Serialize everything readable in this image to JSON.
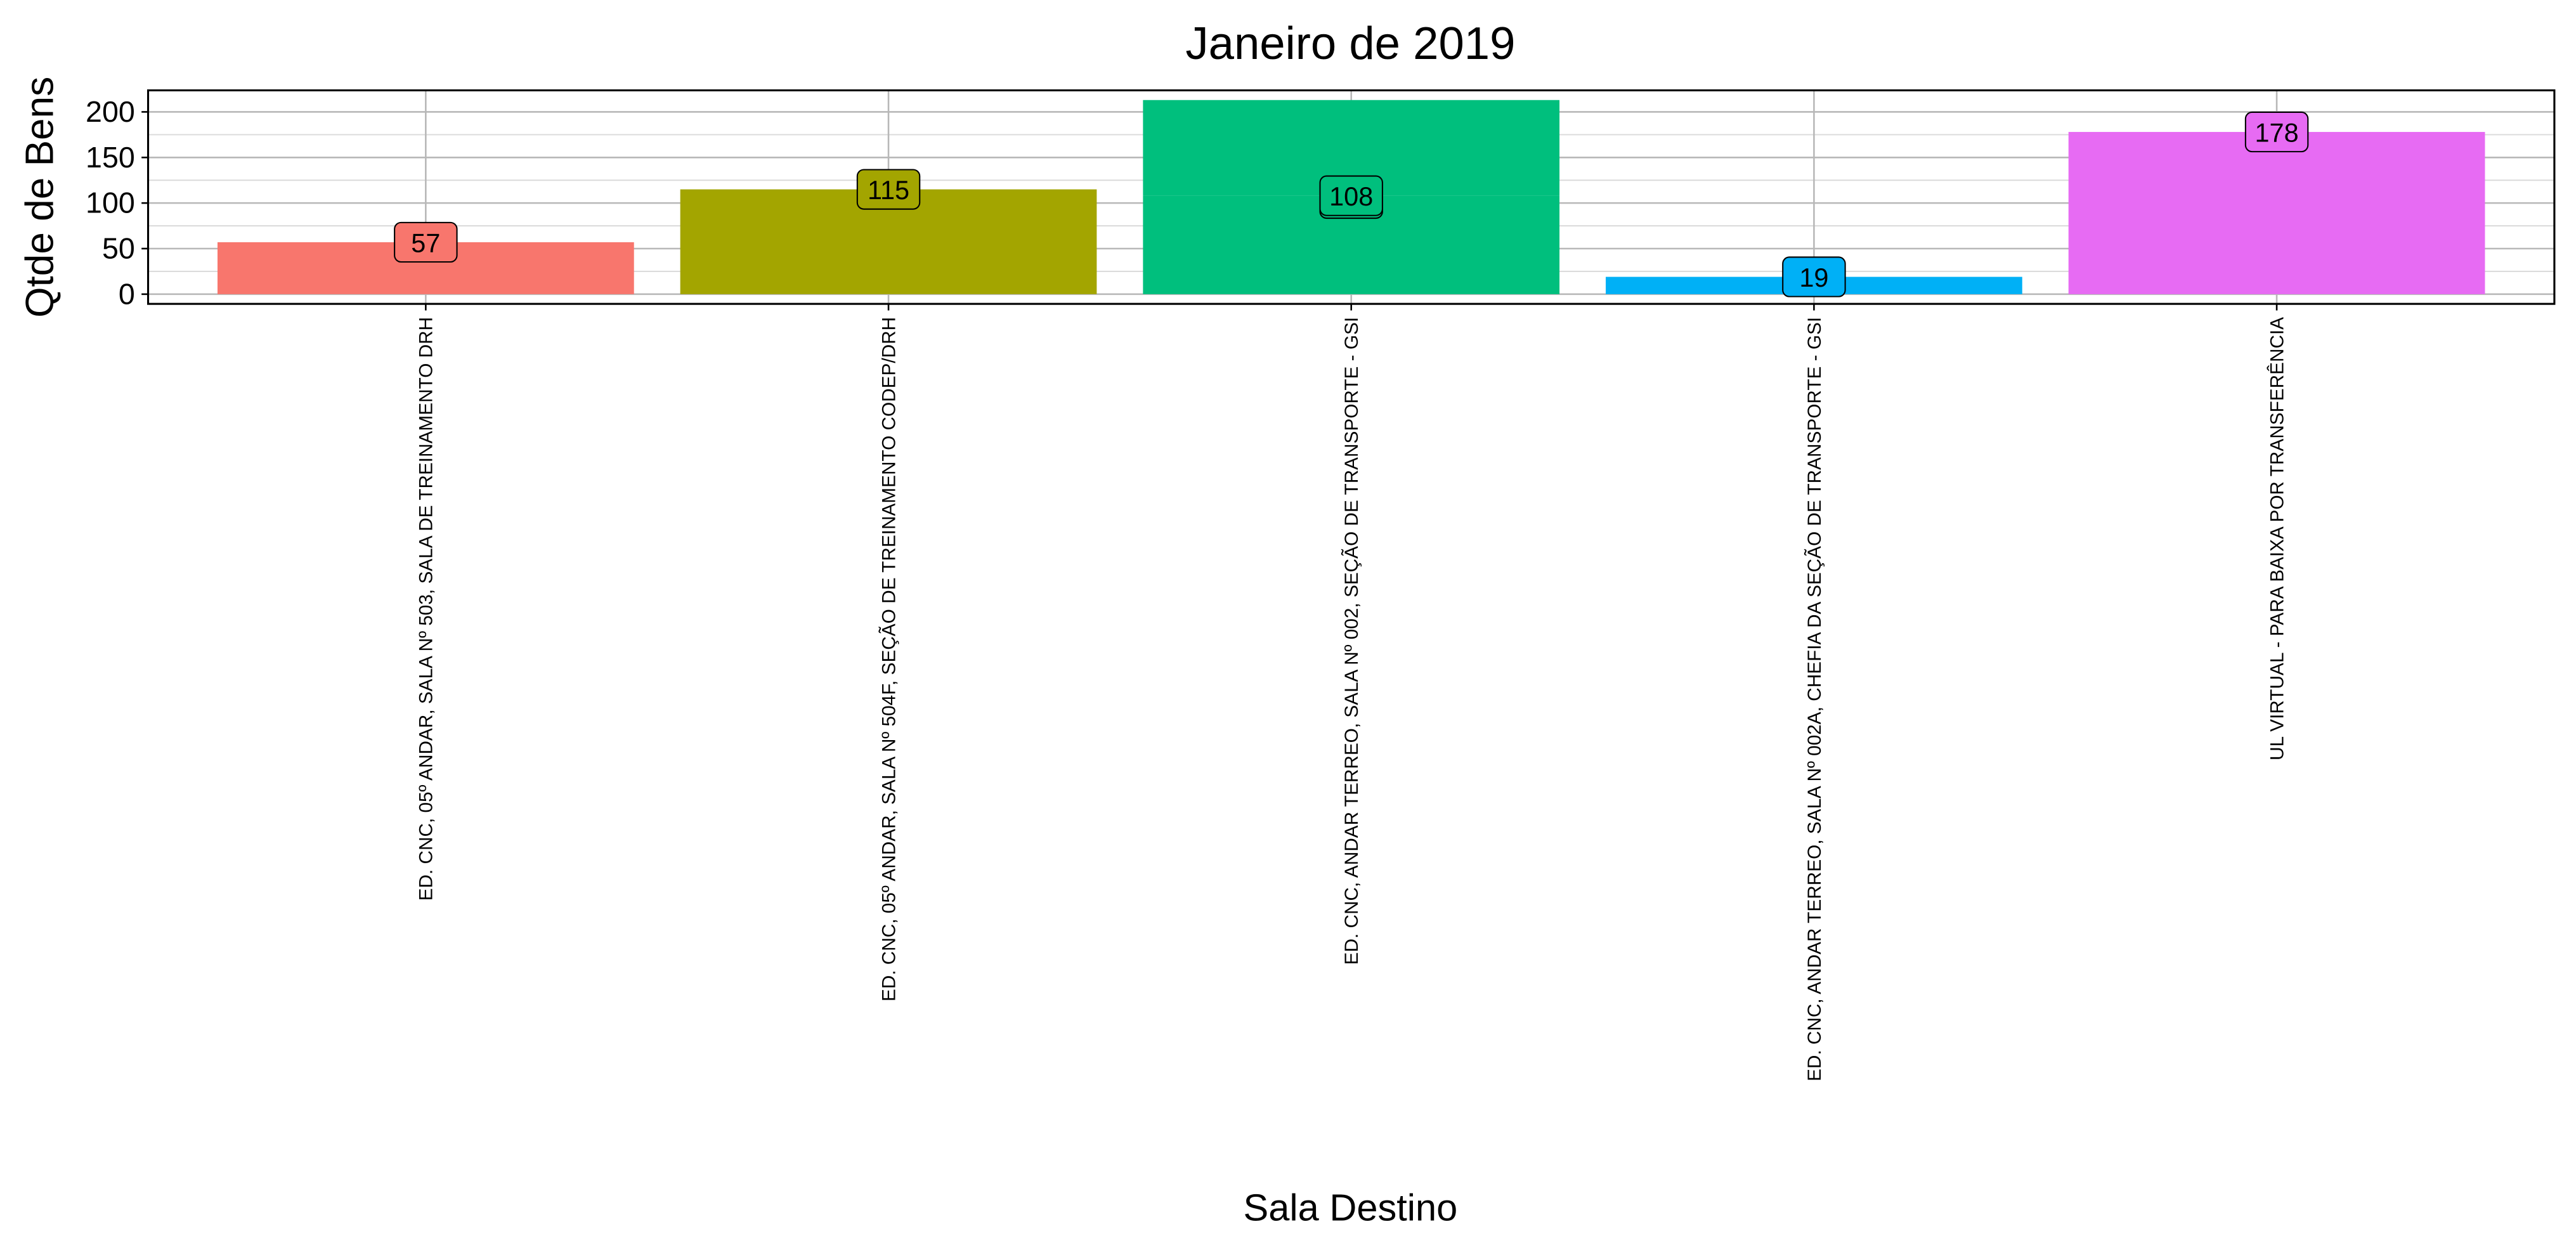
{
  "chart_data": {
    "type": "bar",
    "title": "Janeiro  de  2019",
    "x_label": "Sala Destino",
    "y_label": "Qtde de Bens",
    "categories": [
      "ED. CNC, 05º ANDAR, SALA Nº 503, SALA DE TREINAMENTO DRH",
      "ED. CNC, 05º ANDAR, SALA Nº 504F, SEÇÃO DE TREINAMENTO CODEP/DRH",
      "ED. CNC, ANDAR TERREO, SALA Nº 002, SEÇÃO DE TRANSPORTE - GSI",
      "ED. CNC, ANDAR TERREO, SALA Nº 002A, CHEFIA DA SEÇÃO DE TRANSPORTE - GSI",
      "UL VIRTUAL - PARA BAIXA POR TRANSFERÊNCIA"
    ],
    "colors": [
      "#f8766d",
      "#a3a500",
      "#00bf7d",
      "#00b0f6",
      "#e76bf3"
    ],
    "series": [
      {
        "values": [
          57,
          115,
          108,
          19,
          178
        ]
      },
      {
        "values": [
          null,
          null,
          105,
          null,
          null
        ]
      }
    ],
    "ylim": [
      -10.65,
      223.65
    ],
    "yticks": [
      0,
      50,
      100,
      150,
      200
    ],
    "yminor": [
      25,
      75,
      125,
      175
    ],
    "grid": true
  }
}
